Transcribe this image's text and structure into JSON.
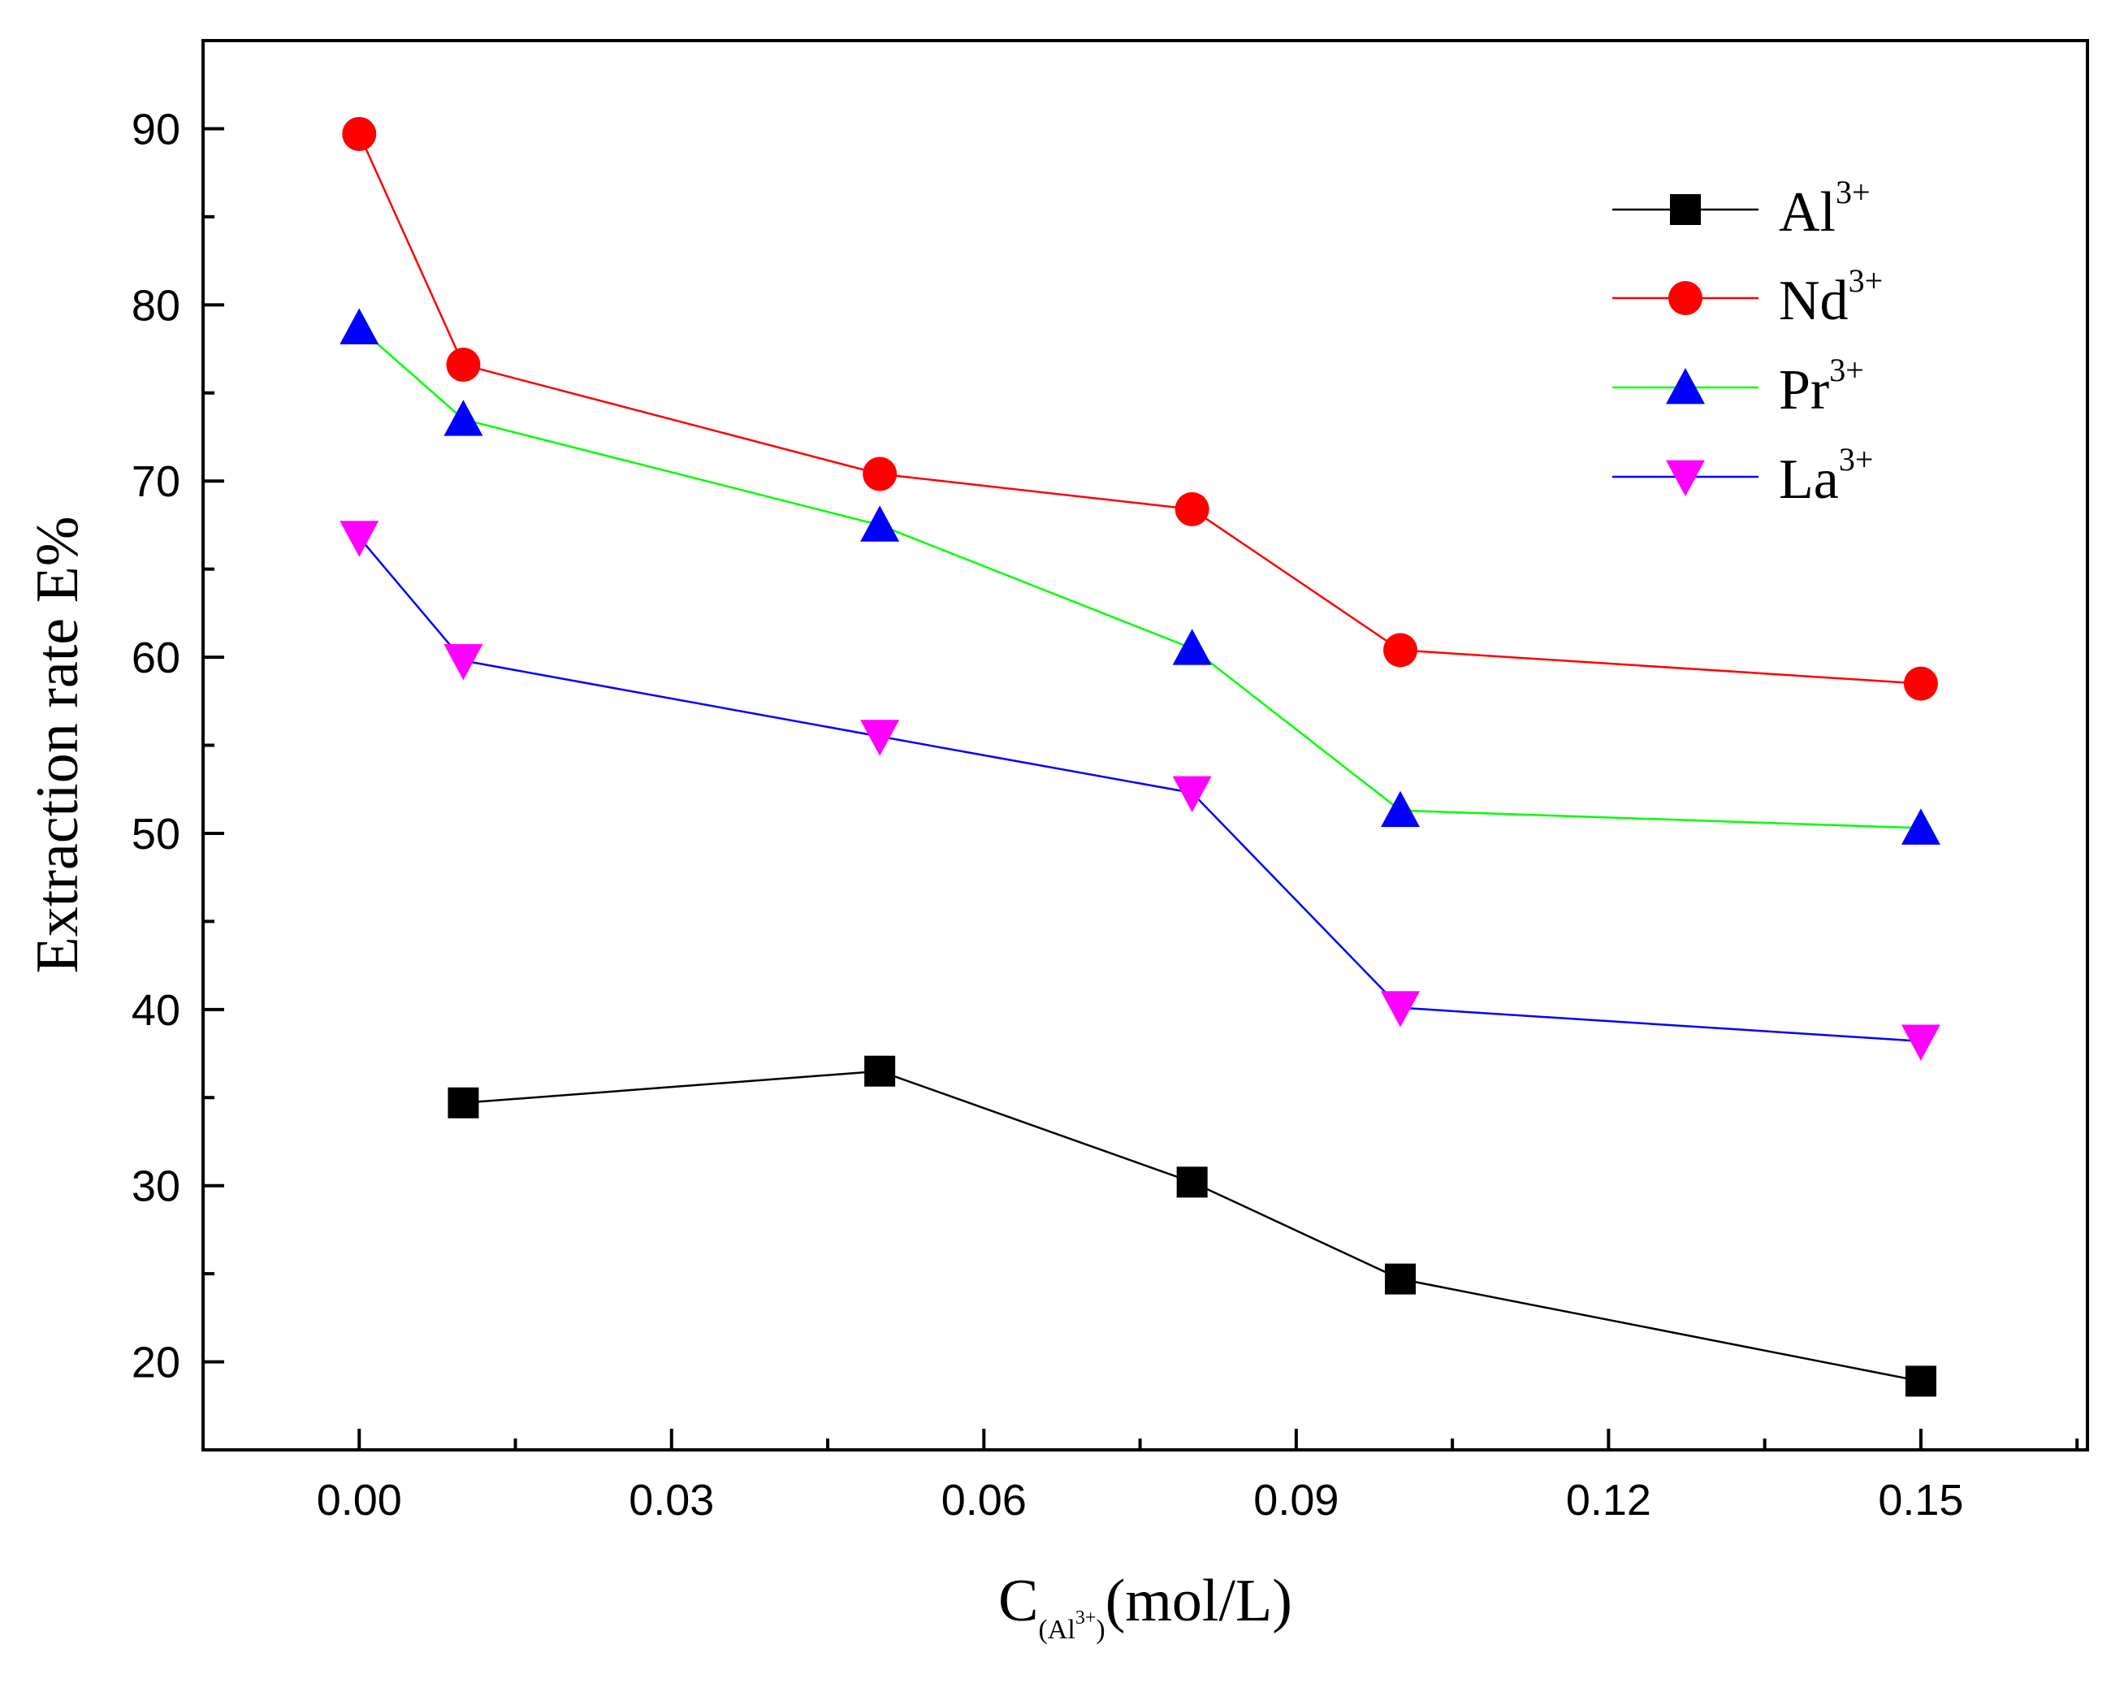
{
  "chart_data": {
    "type": "line",
    "xlabel": {
      "main": "C",
      "sub": "(Al",
      "sub_sup": "3+",
      "sub_close": ")",
      "unit": "(mol/L)"
    },
    "ylabel": "Extraction rate E%",
    "xlim": [
      -0.015,
      0.166
    ],
    "ylim": [
      15,
      95
    ],
    "x_ticks": [
      0.0,
      0.03,
      0.06,
      0.09,
      0.12,
      0.15
    ],
    "x_tick_labels": [
      "0.00",
      "0.03",
      "0.06",
      "0.09",
      "0.12",
      "0.15"
    ],
    "y_ticks": [
      20,
      30,
      40,
      50,
      60,
      70,
      80,
      90
    ],
    "y_tick_labels": [
      "20",
      "30",
      "40",
      "50",
      "60",
      "70",
      "80",
      "90"
    ],
    "legend_position": "top-right",
    "series": [
      {
        "base": "Al",
        "sup": "3+",
        "marker": "square",
        "marker_color": "#000000",
        "line_color": "#000000",
        "x": [
          0.01,
          0.05,
          0.08,
          0.1,
          0.15
        ],
        "y": [
          34.7,
          36.5,
          30.2,
          24.7,
          18.9
        ]
      },
      {
        "base": "Nd",
        "sup": "3+",
        "marker": "circle",
        "marker_color": "#ff0000",
        "line_color": "#ff0000",
        "x": [
          0.0,
          0.01,
          0.05,
          0.08,
          0.1,
          0.15
        ],
        "y": [
          89.7,
          76.6,
          70.4,
          68.4,
          60.4,
          58.5
        ]
      },
      {
        "base": "Pr",
        "sup": "3+",
        "marker": "triangle-up",
        "marker_color": "#0000ff",
        "line_color": "#00ff00",
        "x": [
          0.0,
          0.01,
          0.05,
          0.08,
          0.1,
          0.15
        ],
        "y": [
          78.7,
          73.5,
          67.5,
          60.5,
          51.3,
          50.3
        ]
      },
      {
        "base": "La",
        "sup": "3+",
        "marker": "triangle-down",
        "marker_color": "#ff00ff",
        "line_color": "#0000ff",
        "x": [
          0.0,
          0.01,
          0.05,
          0.08,
          0.1,
          0.15
        ],
        "y": [
          66.8,
          59.8,
          55.5,
          52.3,
          40.1,
          38.2
        ]
      }
    ]
  }
}
